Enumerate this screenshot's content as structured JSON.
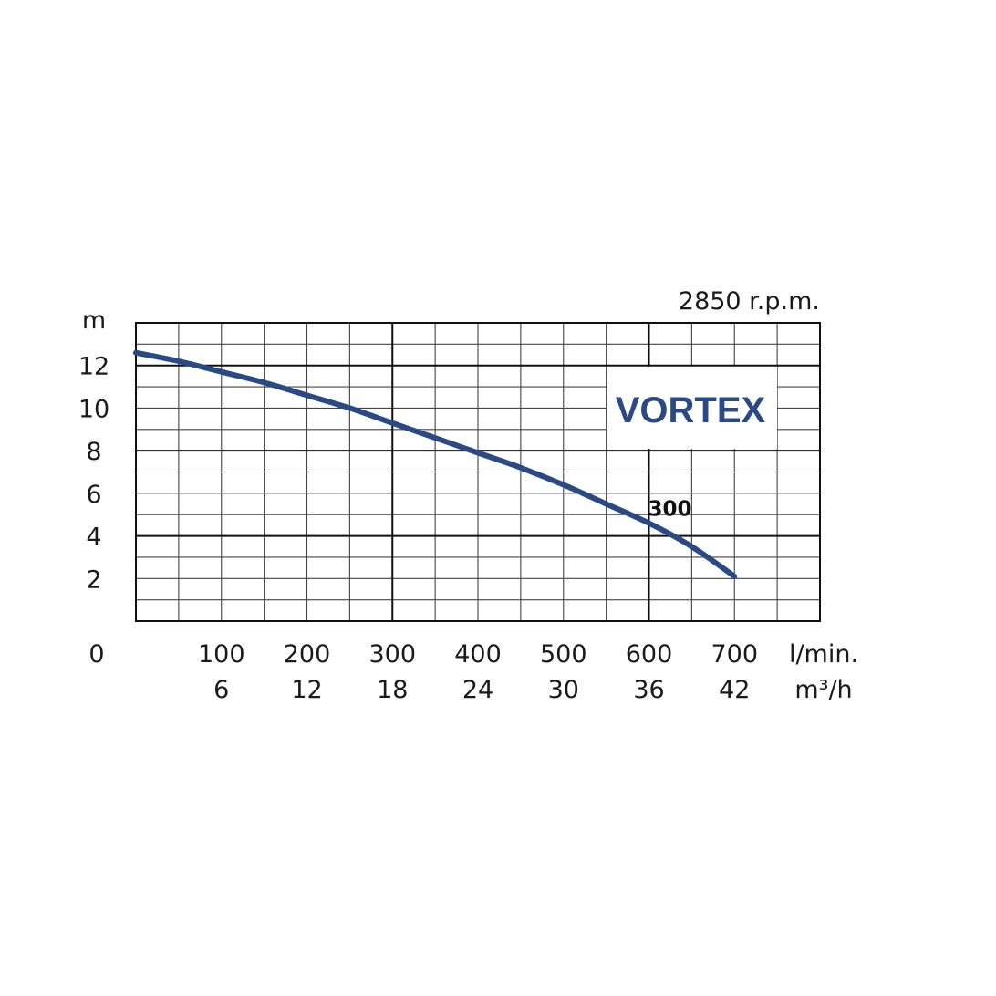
{
  "chart_data": {
    "type": "line",
    "rpm_label": "2850 r.p.m.",
    "brand_label": "VORTEX",
    "y_unit": "m",
    "x_unit_primary": "l/min.",
    "x_unit_secondary": "m³/h",
    "origin_label": "0",
    "ylim": [
      0,
      14
    ],
    "xlim": [
      0,
      800
    ],
    "y_ticks": [
      {
        "value": 2,
        "label": "2"
      },
      {
        "value": 4,
        "label": "4"
      },
      {
        "value": 6,
        "label": "6"
      },
      {
        "value": 8,
        "label": "8"
      },
      {
        "value": 10,
        "label": "10"
      },
      {
        "value": 12,
        "label": "12"
      }
    ],
    "x_ticks": [
      {
        "value": 100,
        "label": "100",
        "label2": "6"
      },
      {
        "value": 200,
        "label": "200",
        "label2": "12"
      },
      {
        "value": 300,
        "label": "300",
        "label2": "18"
      },
      {
        "value": 400,
        "label": "400",
        "label2": "24"
      },
      {
        "value": 500,
        "label": "500",
        "label2": "30"
      },
      {
        "value": 600,
        "label": "600",
        "label2": "36"
      },
      {
        "value": 700,
        "label": "700",
        "label2": "42"
      }
    ],
    "grid": true,
    "series": [
      {
        "name": "300",
        "color": "#2a4a85",
        "x": [
          0,
          50,
          100,
          150,
          200,
          250,
          300,
          350,
          400,
          450,
          500,
          550,
          600,
          650,
          700
        ],
        "y": [
          12.6,
          12.2,
          11.7,
          11.2,
          10.6,
          10.0,
          9.3,
          8.6,
          7.9,
          7.2,
          6.4,
          5.5,
          4.6,
          3.5,
          2.1
        ]
      }
    ],
    "colors": {
      "curve": "#2a4a85",
      "brand": "#2a4a85",
      "grid_major": "#111111",
      "grid_minor": "#444444"
    }
  }
}
